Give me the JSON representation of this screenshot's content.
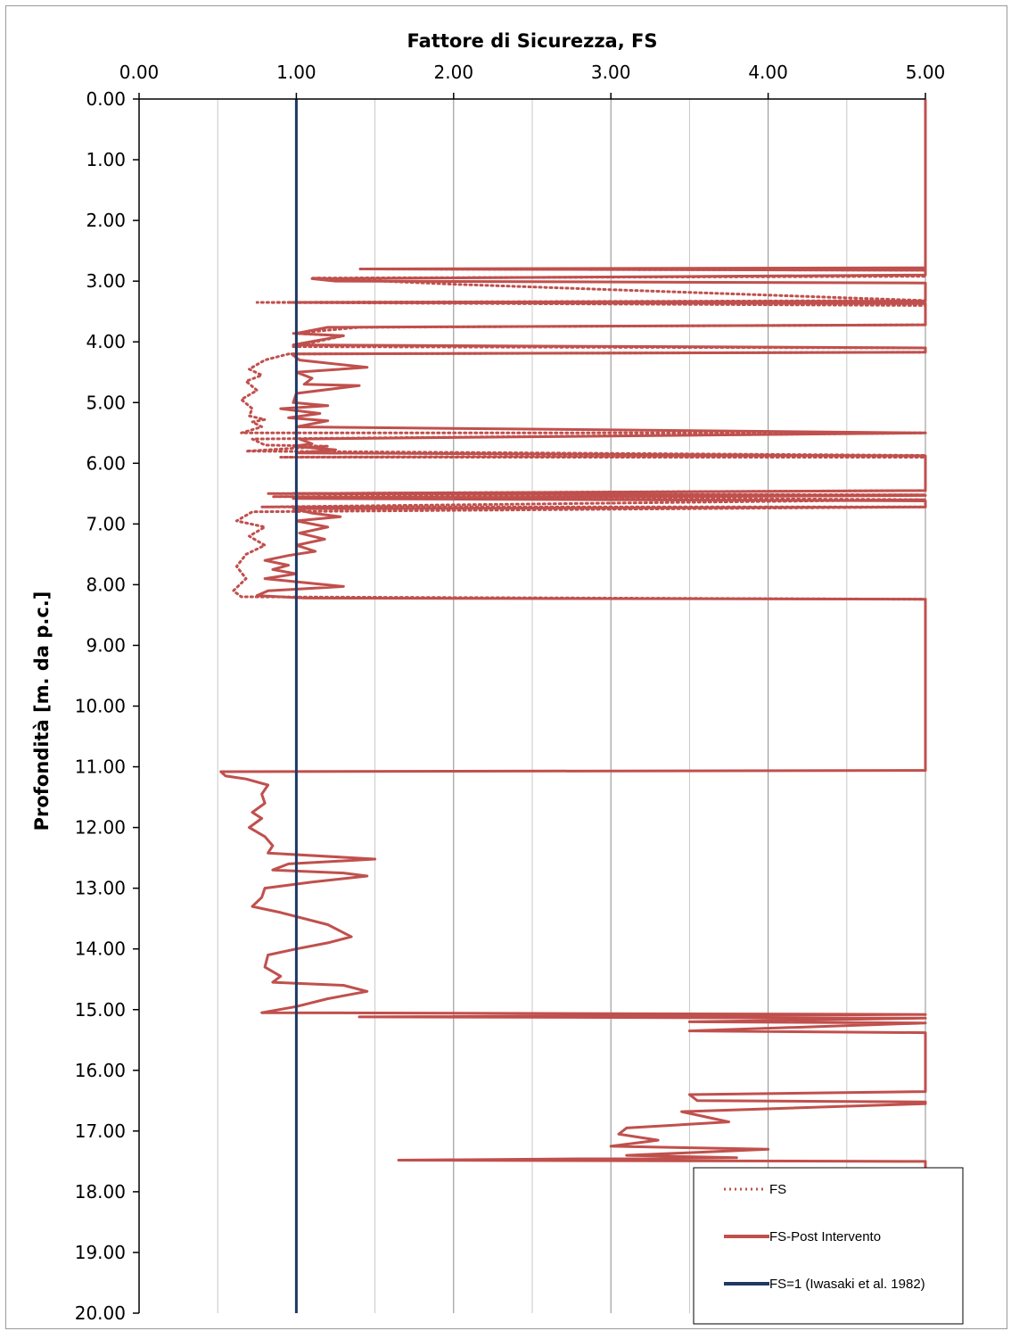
{
  "chart_data": {
    "type": "line",
    "xlabel": "Fattore di Sicurezza, FS",
    "ylabel": "Profondità [m. da p.c.]",
    "xlim": [
      0,
      5
    ],
    "ylim": [
      0,
      20
    ],
    "y_inverted": true,
    "x_axis_position": "top",
    "x_ticks": [
      "0.00",
      "1.00",
      "2.00",
      "3.00",
      "4.00",
      "5.00"
    ],
    "y_ticks": [
      "0.00",
      "1.00",
      "2.00",
      "3.00",
      "4.00",
      "5.00",
      "6.00",
      "7.00",
      "8.00",
      "9.00",
      "10.00",
      "11.00",
      "12.00",
      "13.00",
      "14.00",
      "15.00",
      "16.00",
      "17.00",
      "18.00",
      "19.00",
      "20.00"
    ],
    "x_minor_gridlines": true,
    "grid": true,
    "legend_position": "bottom-right",
    "series": [
      {
        "name": "FS",
        "style": "dotted",
        "color": "#c0504d",
        "points": [
          [
            5.0,
            2.8
          ],
          [
            1.4,
            2.8
          ],
          [
            5.0,
            2.82
          ],
          [
            5.0,
            2.92
          ],
          [
            1.1,
            2.95
          ],
          [
            2.0,
            3.05
          ],
          [
            5.0,
            3.32
          ],
          [
            0.75,
            3.35
          ],
          [
            5.0,
            3.4
          ],
          [
            5.0,
            3.72
          ],
          [
            1.4,
            3.76
          ],
          [
            0.98,
            3.86
          ],
          [
            1.3,
            3.9
          ],
          [
            0.98,
            4.08
          ],
          [
            5.0,
            4.1
          ],
          [
            5.0,
            4.17
          ],
          [
            0.95,
            4.2
          ],
          [
            0.8,
            4.3
          ],
          [
            0.7,
            4.45
          ],
          [
            0.78,
            4.55
          ],
          [
            0.68,
            4.65
          ],
          [
            0.75,
            4.8
          ],
          [
            0.65,
            4.95
          ],
          [
            0.72,
            5.1
          ],
          [
            0.7,
            5.22
          ],
          [
            0.8,
            5.28
          ],
          [
            0.72,
            5.32
          ],
          [
            0.78,
            5.4
          ],
          [
            0.65,
            5.5
          ],
          [
            5.0,
            5.5
          ],
          [
            0.72,
            5.6
          ],
          [
            0.8,
            5.7
          ],
          [
            1.2,
            5.72
          ],
          [
            0.68,
            5.8
          ],
          [
            5.0,
            5.87
          ],
          [
            0.9,
            5.9
          ],
          [
            5.0,
            5.9
          ],
          [
            5.0,
            6.45
          ],
          [
            0.82,
            6.5
          ],
          [
            5.0,
            6.52
          ],
          [
            0.85,
            6.55
          ],
          [
            5.0,
            6.6
          ],
          [
            0.78,
            6.72
          ],
          [
            5.0,
            6.72
          ],
          [
            0.72,
            6.8
          ],
          [
            0.62,
            6.95
          ],
          [
            0.8,
            7.05
          ],
          [
            0.7,
            7.2
          ],
          [
            0.8,
            7.35
          ],
          [
            0.68,
            7.5
          ],
          [
            0.62,
            7.7
          ],
          [
            0.68,
            7.9
          ],
          [
            0.6,
            8.1
          ],
          [
            0.65,
            8.2
          ],
          [
            5.0,
            8.24
          ],
          [
            5.0,
            11.0
          ]
        ]
      },
      {
        "name": "FS-Post Intervento",
        "style": "solid",
        "color": "#c0504d",
        "points": [
          [
            5.0,
            0.0
          ],
          [
            5.0,
            2.78
          ],
          [
            1.44,
            2.8
          ],
          [
            5.0,
            2.82
          ],
          [
            5.0,
            2.9
          ],
          [
            1.1,
            2.96
          ],
          [
            1.25,
            3.0
          ],
          [
            5.0,
            3.03
          ],
          [
            5.0,
            3.33
          ],
          [
            0.97,
            3.35
          ],
          [
            5.0,
            3.37
          ],
          [
            5.0,
            3.72
          ],
          [
            1.2,
            3.76
          ],
          [
            1.0,
            3.86
          ],
          [
            1.3,
            3.9
          ],
          [
            0.98,
            4.05
          ],
          [
            5.0,
            4.1
          ],
          [
            5.0,
            4.17
          ],
          [
            0.97,
            4.2
          ],
          [
            1.02,
            4.3
          ],
          [
            1.45,
            4.42
          ],
          [
            1.0,
            4.5
          ],
          [
            1.1,
            4.6
          ],
          [
            1.05,
            4.7
          ],
          [
            1.4,
            4.72
          ],
          [
            1.0,
            4.85
          ],
          [
            0.98,
            5.0
          ],
          [
            1.2,
            5.05
          ],
          [
            0.9,
            5.1
          ],
          [
            1.15,
            5.18
          ],
          [
            0.95,
            5.25
          ],
          [
            1.2,
            5.3
          ],
          [
            1.0,
            5.4
          ],
          [
            5.0,
            5.5
          ],
          [
            1.02,
            5.6
          ],
          [
            1.1,
            5.68
          ],
          [
            0.98,
            5.72
          ],
          [
            1.25,
            5.78
          ],
          [
            1.0,
            5.83
          ],
          [
            5.0,
            5.88
          ],
          [
            5.0,
            5.9
          ],
          [
            5.0,
            6.45
          ],
          [
            0.98,
            6.5
          ],
          [
            5.0,
            6.53
          ],
          [
            0.98,
            6.58
          ],
          [
            5.0,
            6.62
          ],
          [
            5.0,
            6.72
          ],
          [
            0.98,
            6.75
          ],
          [
            1.1,
            6.82
          ],
          [
            1.28,
            6.88
          ],
          [
            1.0,
            6.95
          ],
          [
            1.2,
            7.05
          ],
          [
            1.02,
            7.15
          ],
          [
            1.18,
            7.25
          ],
          [
            1.0,
            7.35
          ],
          [
            1.12,
            7.45
          ],
          [
            0.95,
            7.52
          ],
          [
            0.8,
            7.6
          ],
          [
            0.95,
            7.68
          ],
          [
            0.85,
            7.75
          ],
          [
            1.0,
            7.82
          ],
          [
            0.8,
            7.9
          ],
          [
            1.3,
            8.03
          ],
          [
            0.82,
            8.1
          ],
          [
            0.75,
            8.18
          ],
          [
            1.05,
            8.22
          ],
          [
            5.0,
            8.24
          ],
          [
            5.0,
            11.06
          ],
          [
            0.52,
            11.08
          ],
          [
            0.55,
            11.15
          ],
          [
            0.68,
            11.2
          ],
          [
            0.82,
            11.3
          ],
          [
            0.78,
            11.45
          ],
          [
            0.8,
            11.6
          ],
          [
            0.72,
            11.75
          ],
          [
            0.78,
            11.85
          ],
          [
            0.7,
            12.0
          ],
          [
            0.8,
            12.15
          ],
          [
            0.85,
            12.3
          ],
          [
            0.82,
            12.42
          ],
          [
            1.5,
            12.52
          ],
          [
            0.95,
            12.6
          ],
          [
            0.85,
            12.7
          ],
          [
            1.3,
            12.75
          ],
          [
            1.45,
            12.8
          ],
          [
            1.1,
            12.9
          ],
          [
            0.8,
            13.0
          ],
          [
            0.78,
            13.15
          ],
          [
            0.72,
            13.3
          ],
          [
            0.9,
            13.4
          ],
          [
            1.2,
            13.6
          ],
          [
            1.35,
            13.8
          ],
          [
            1.2,
            13.9
          ],
          [
            1.0,
            14.0
          ],
          [
            0.82,
            14.1
          ],
          [
            0.8,
            14.3
          ],
          [
            0.9,
            14.45
          ],
          [
            0.85,
            14.55
          ],
          [
            1.3,
            14.6
          ],
          [
            1.45,
            14.7
          ],
          [
            1.2,
            14.82
          ],
          [
            1.0,
            14.95
          ],
          [
            0.78,
            15.05
          ],
          [
            5.0,
            15.08
          ],
          [
            1.4,
            15.12
          ],
          [
            5.0,
            15.14
          ],
          [
            3.5,
            15.2
          ],
          [
            5.0,
            15.22
          ],
          [
            3.5,
            15.35
          ],
          [
            5.0,
            15.38
          ],
          [
            5.0,
            16.35
          ],
          [
            3.5,
            16.4
          ],
          [
            3.55,
            16.5
          ],
          [
            5.0,
            16.52
          ],
          [
            5.0,
            16.55
          ],
          [
            3.45,
            16.68
          ],
          [
            3.75,
            16.85
          ],
          [
            3.1,
            16.95
          ],
          [
            3.05,
            17.05
          ],
          [
            3.3,
            17.15
          ],
          [
            3.0,
            17.25
          ],
          [
            4.0,
            17.3
          ],
          [
            3.1,
            17.4
          ],
          [
            3.8,
            17.44
          ],
          [
            1.65,
            17.48
          ],
          [
            5.0,
            17.5
          ],
          [
            5.0,
            20.0
          ]
        ]
      },
      {
        "name": "FS=1 (Iwasaki et al. 1982)",
        "style": "solid",
        "color": "#1f3864",
        "points": [
          [
            1.0,
            0.0
          ],
          [
            1.0,
            20.0
          ]
        ]
      }
    ]
  },
  "legend": [
    {
      "label": "FS"
    },
    {
      "label": "FS-Post Intervento"
    },
    {
      "label": "FS=1 (Iwasaki et al. 1982)"
    }
  ]
}
